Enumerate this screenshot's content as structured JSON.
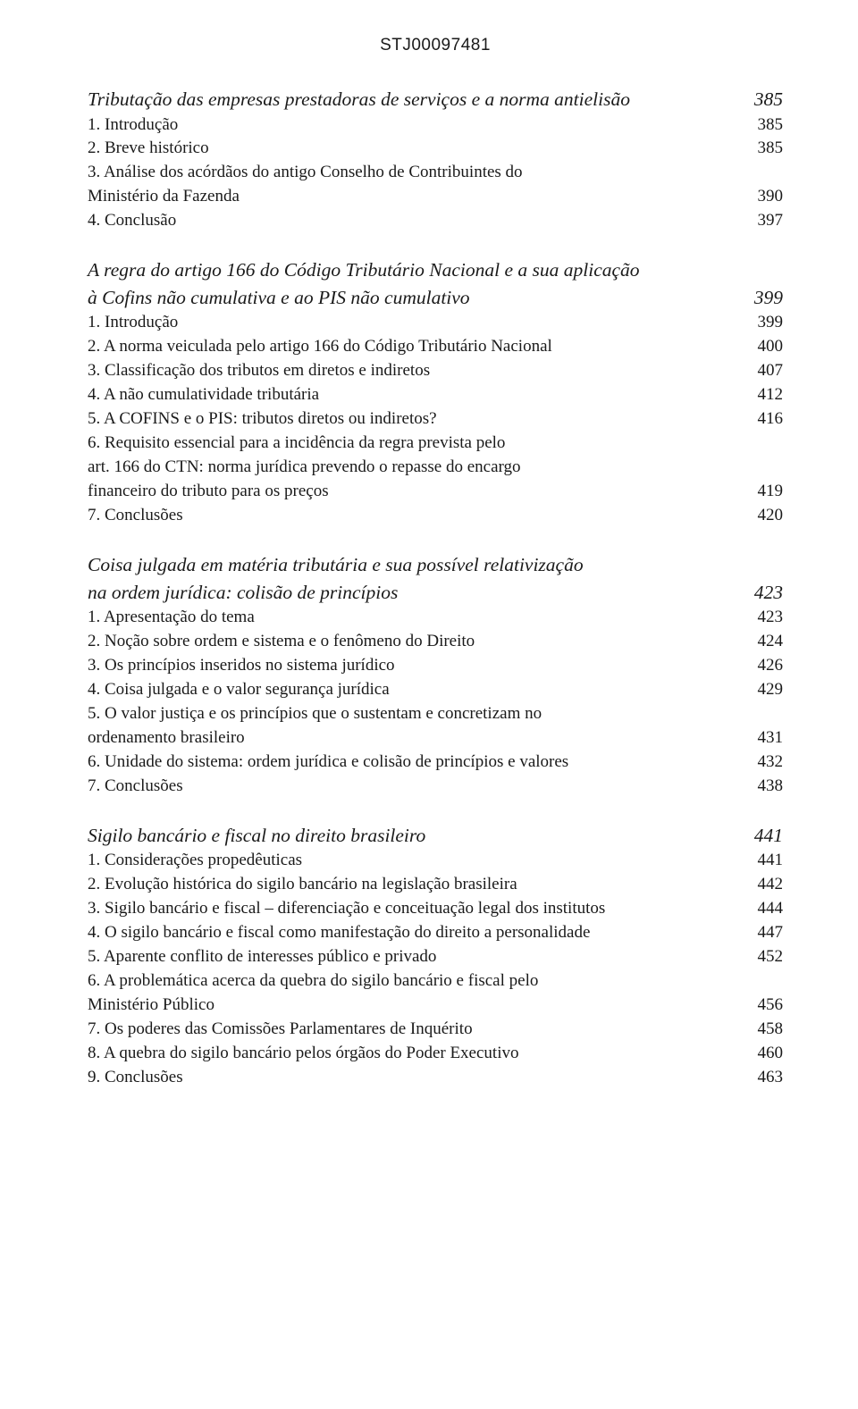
{
  "header_code": "STJ00097481",
  "sections": [
    {
      "title_lines": [
        "Tributação das empresas prestadoras de serviços e a norma antielisão"
      ],
      "title_page": "385",
      "entries": [
        {
          "lines": [
            "1. Introdução"
          ],
          "page": "385"
        },
        {
          "lines": [
            "2. Breve histórico"
          ],
          "page": "385"
        },
        {
          "lines": [
            "3. Análise dos acórdãos do antigo Conselho de Contribuintes do",
            "Ministério da Fazenda"
          ],
          "page": "390"
        },
        {
          "lines": [
            "4. Conclusão"
          ],
          "page": "397"
        }
      ]
    },
    {
      "title_lines": [
        "A regra do artigo 166 do Código Tributário Nacional e a sua aplicação",
        "à Cofins não cumulativa e ao PIS não cumulativo"
      ],
      "title_page": "399",
      "entries": [
        {
          "lines": [
            "1. Introdução"
          ],
          "page": "399"
        },
        {
          "lines": [
            "2. A norma veiculada pelo artigo 166 do Código Tributário Nacional"
          ],
          "page": "400"
        },
        {
          "lines": [
            "3. Classificação dos tributos em diretos e indiretos"
          ],
          "page": "407"
        },
        {
          "lines": [
            "4. A não cumulatividade tributária"
          ],
          "page": "412"
        },
        {
          "lines": [
            "5. A COFINS e o PIS: tributos diretos ou indiretos?"
          ],
          "page": "416"
        },
        {
          "lines": [
            "6. Requisito essencial para a incidência da regra prevista pelo",
            "art. 166 do CTN: norma jurídica prevendo o repasse do encargo",
            "financeiro do tributo para os preços"
          ],
          "page": "419"
        },
        {
          "lines": [
            "7. Conclusões"
          ],
          "page": "420"
        }
      ]
    },
    {
      "title_lines": [
        "Coisa julgada em matéria tributária e sua possível relativização",
        "na ordem jurídica: colisão de princípios"
      ],
      "title_page": "423",
      "entries": [
        {
          "lines": [
            "1. Apresentação do tema"
          ],
          "page": "423"
        },
        {
          "lines": [
            "2. Noção sobre ordem e sistema e o fenômeno do Direito"
          ],
          "page": "424"
        },
        {
          "lines": [
            "3. Os princípios inseridos no sistema jurídico"
          ],
          "page": "426"
        },
        {
          "lines": [
            "4. Coisa julgada e o valor segurança jurídica"
          ],
          "page": "429"
        },
        {
          "lines": [
            "5. O valor justiça e os princípios que o sustentam e concretizam no",
            "ordenamento brasileiro"
          ],
          "page": "431"
        },
        {
          "lines": [
            "6. Unidade do sistema: ordem jurídica e colisão de princípios e valores"
          ],
          "page": "432"
        },
        {
          "lines": [
            "7. Conclusões"
          ],
          "page": "438"
        }
      ]
    },
    {
      "title_lines": [
        "Sigilo bancário e fiscal no direito brasileiro"
      ],
      "title_page": "441",
      "entries": [
        {
          "lines": [
            "1. Considerações propedêuticas"
          ],
          "page": "441"
        },
        {
          "lines": [
            "2. Evolução histórica do sigilo bancário na legislação brasileira"
          ],
          "page": "442"
        },
        {
          "lines": [
            "3. Sigilo bancário e fiscal – diferenciação e conceituação legal dos institutos"
          ],
          "page": "444"
        },
        {
          "lines": [
            "4. O sigilo bancário e fiscal como manifestação do direito a personalidade"
          ],
          "page": "447"
        },
        {
          "lines": [
            "5. Aparente conflito de interesses público e privado"
          ],
          "page": "452"
        },
        {
          "lines": [
            "6. A problemática acerca da quebra do sigilo bancário e fiscal pelo",
            "Ministério Público"
          ],
          "page": "456"
        },
        {
          "lines": [
            "7. Os poderes das Comissões Parlamentares de Inquérito"
          ],
          "page": "458"
        },
        {
          "lines": [
            "8. A quebra do sigilo bancário pelos órgãos do Poder Executivo"
          ],
          "page": "460"
        },
        {
          "lines": [
            "9. Conclusões"
          ],
          "page": "463"
        }
      ]
    }
  ]
}
